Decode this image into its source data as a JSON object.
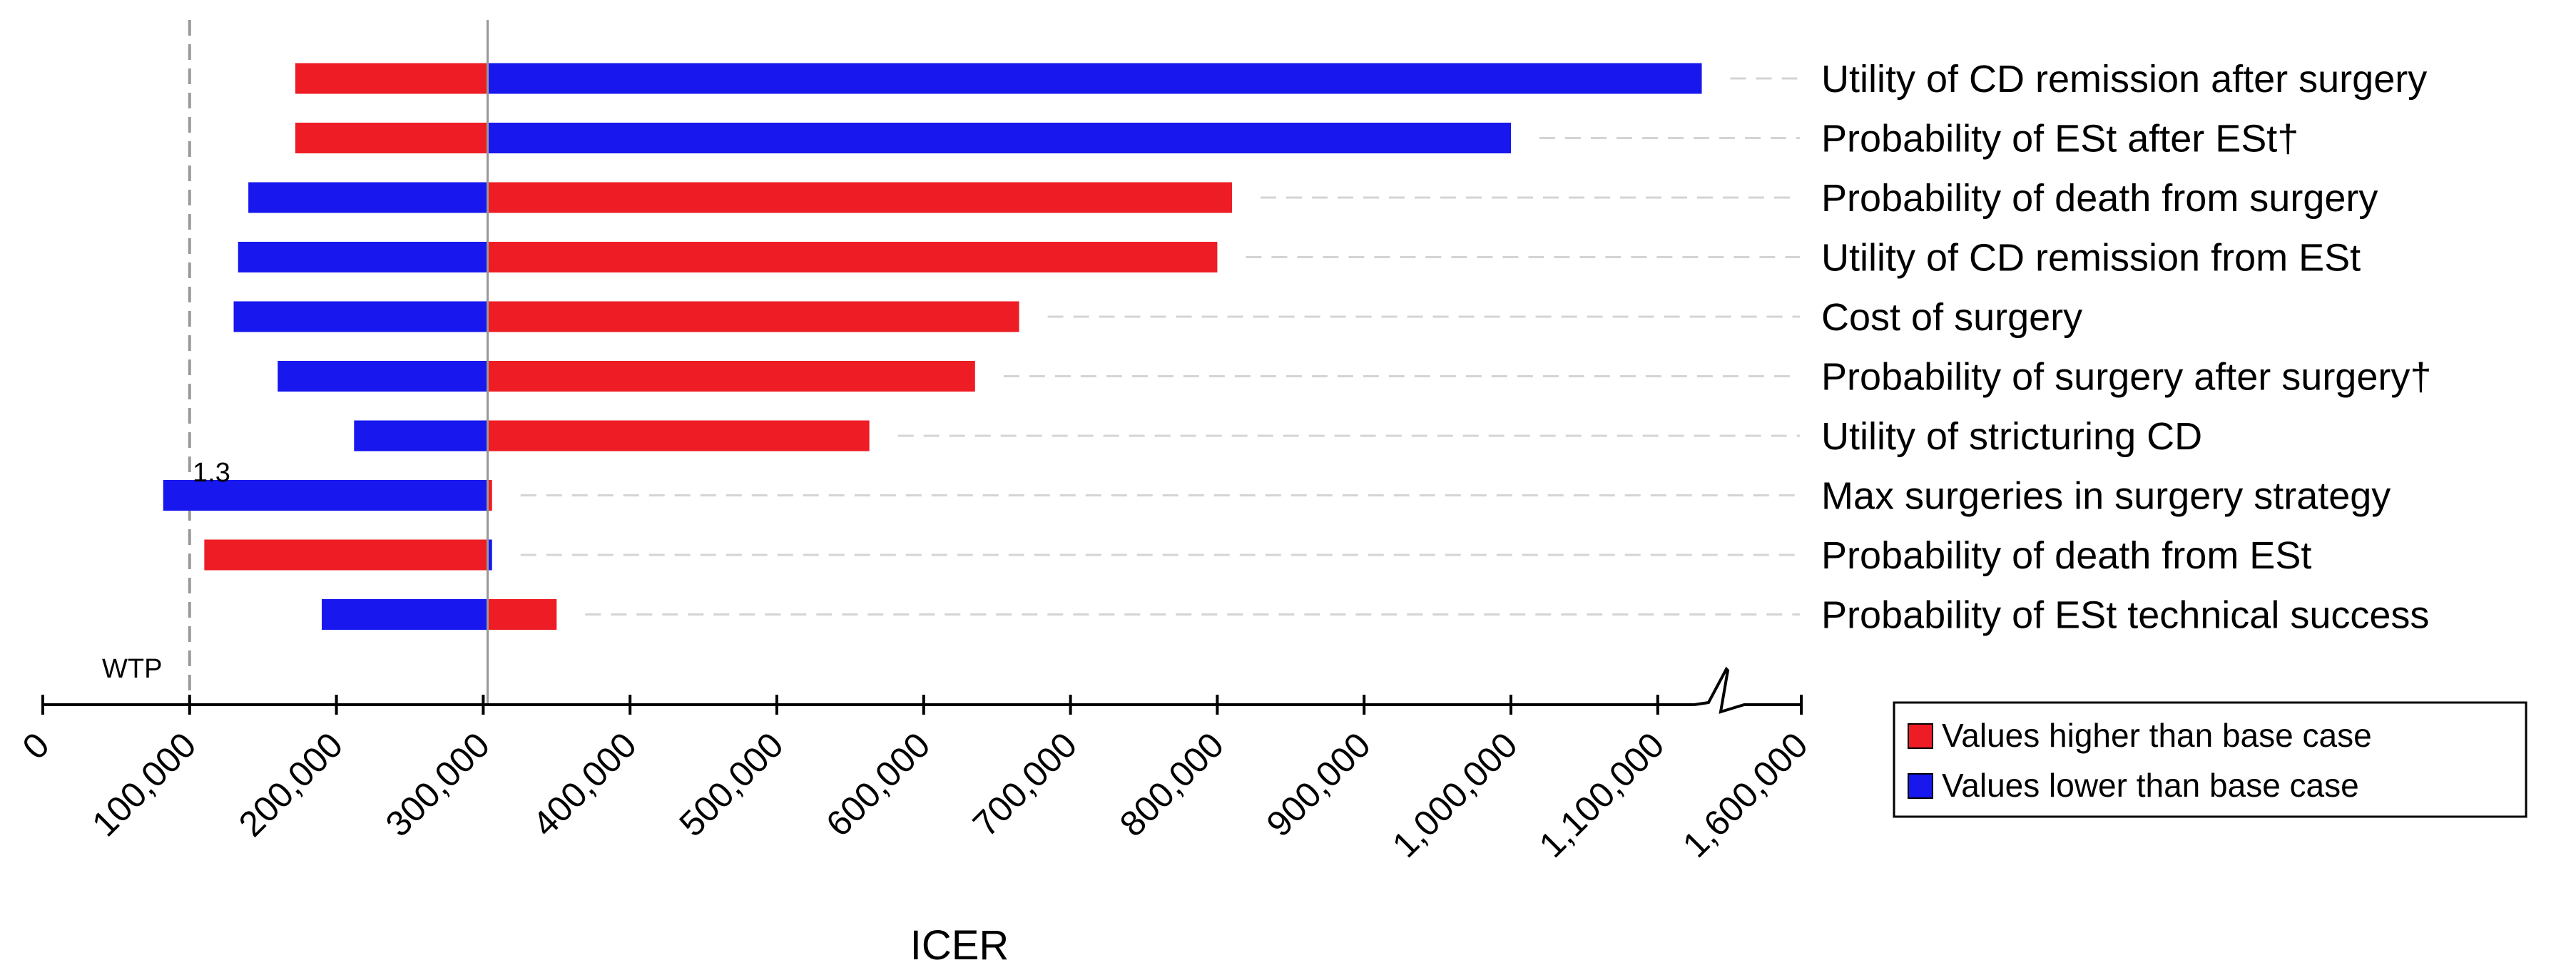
{
  "chart_data": {
    "type": "bar",
    "subtype": "tornado",
    "title": "",
    "xlabel": "ICER",
    "ylabel": "",
    "base_case": 303000,
    "xlim": [
      0,
      1600000
    ],
    "axis_break": "between 1,100,000 and 1,600,000",
    "x_ticks": [
      0,
      100000,
      200000,
      300000,
      400000,
      500000,
      600000,
      700000,
      800000,
      900000,
      1000000,
      1100000,
      1600000
    ],
    "x_tick_labels": [
      "0",
      "100,000",
      "200,000",
      "300,000",
      "400,000",
      "500,000",
      "600,000",
      "700,000",
      "800,000",
      "900,000",
      "1,000,000",
      "1,100,000",
      "1,600,000"
    ],
    "wtp": {
      "label": "WTP",
      "value": 100000
    },
    "annotations": [
      {
        "text": "1.3",
        "near": "Max surgeries in surgery strategy"
      }
    ],
    "parameters": [
      {
        "name": "Utility of CD remission after surgery",
        "low": 172000,
        "high": 1130000,
        "left_color": "red",
        "right_color": "blue"
      },
      {
        "name": "Probability of ESt after ESt†",
        "low": 172000,
        "high": 1000000,
        "left_color": "red",
        "right_color": "blue"
      },
      {
        "name": "Probability of death from surgery",
        "low": 140000,
        "high": 810000,
        "left_color": "blue",
        "right_color": "red"
      },
      {
        "name": "Utility of CD remission from ESt",
        "low": 133000,
        "high": 800000,
        "left_color": "blue",
        "right_color": "red"
      },
      {
        "name": "Cost of surgery",
        "low": 130000,
        "high": 665000,
        "left_color": "blue",
        "right_color": "red"
      },
      {
        "name": "Probability of surgery after surgery†",
        "low": 160000,
        "high": 635000,
        "left_color": "blue",
        "right_color": "red"
      },
      {
        "name": "Utility of stricturing CD",
        "low": 212000,
        "high": 563000,
        "left_color": "blue",
        "right_color": "red"
      },
      {
        "name": "Max surgeries in surgery strategy",
        "low": 82000,
        "high": 306000,
        "left_color": "blue",
        "right_color": "red"
      },
      {
        "name": "Probability of death from ESt",
        "low": 110000,
        "high": 306000,
        "left_color": "red",
        "right_color": "blue"
      },
      {
        "name": "Probability of ESt technical success",
        "low": 190000,
        "high": 350000,
        "left_color": "blue",
        "right_color": "red"
      }
    ],
    "legend": {
      "position": "bottom-right",
      "entries": [
        {
          "label": "Values higher than base case",
          "color": "#ee1c24"
        },
        {
          "label": "Values lower than base case",
          "color": "#1717ee"
        }
      ]
    },
    "colors": {
      "red": "#ee1c24",
      "blue": "#1717ee"
    },
    "grid": false
  }
}
